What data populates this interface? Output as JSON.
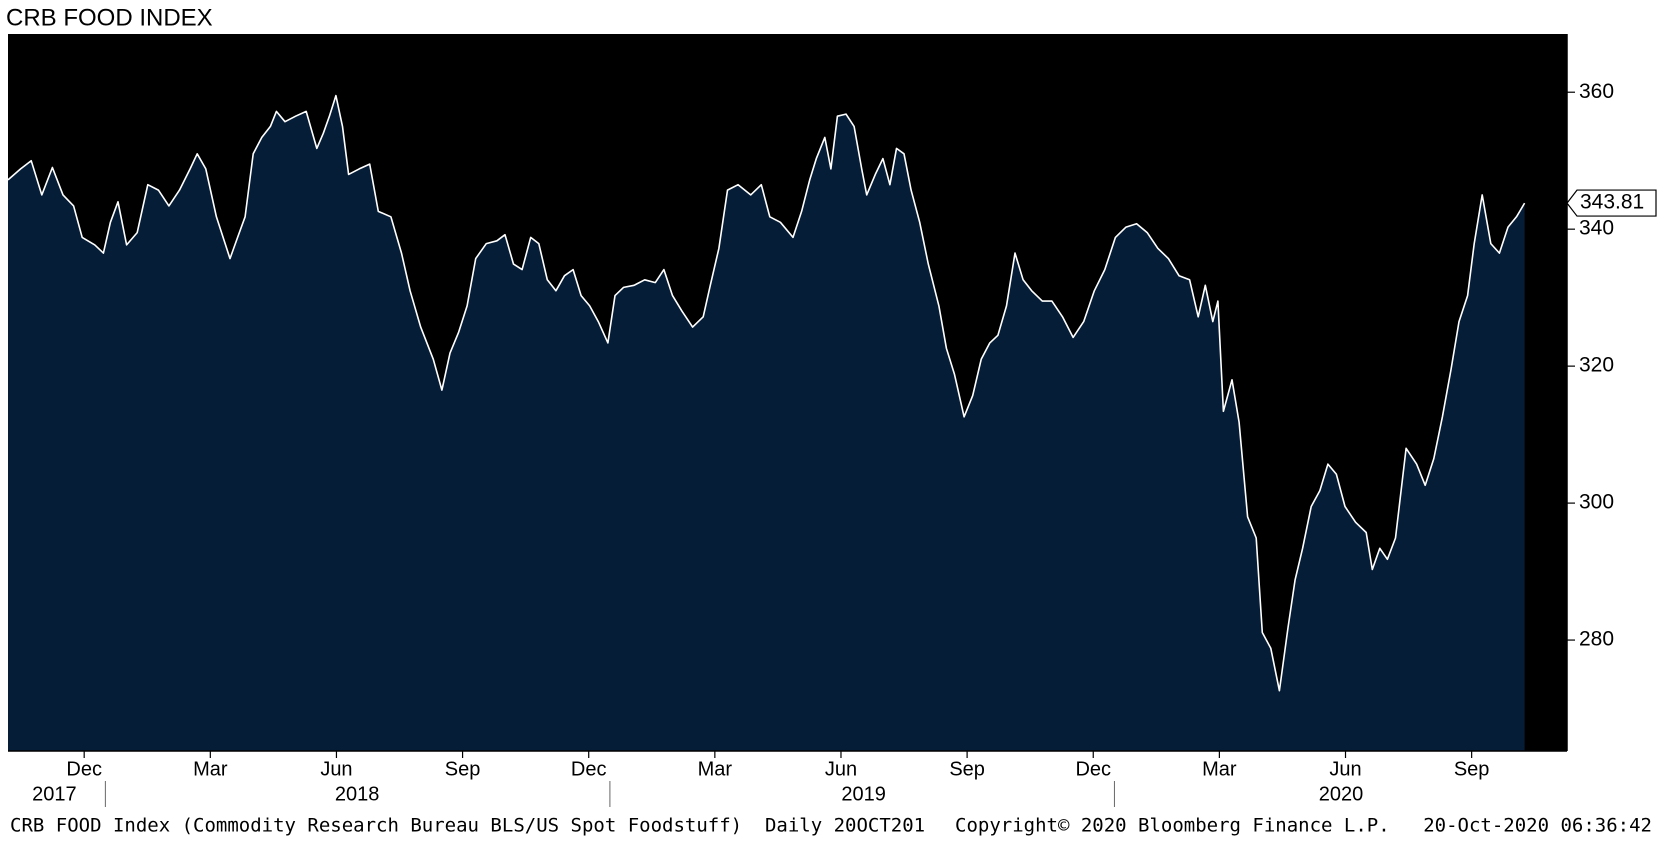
{
  "chart_data": {
    "type": "area",
    "title": "CRB FOOD INDEX",
    "x": [
      2017.807,
      2017.832,
      2017.853,
      2017.874,
      2017.895,
      2017.916,
      2017.937,
      2017.954,
      2017.979,
      2017.996,
      2018.01,
      2018.025,
      2018.042,
      2018.063,
      2018.084,
      2018.105,
      2018.126,
      2018.147,
      2018.168,
      2018.182,
      2018.199,
      2018.22,
      2018.247,
      2018.262,
      2018.277,
      2018.293,
      2018.31,
      2018.327,
      2018.339,
      2018.356,
      2018.377,
      2018.398,
      2018.419,
      2018.432,
      2018.444,
      2018.457,
      2018.47,
      2018.482,
      2018.503,
      2018.524,
      2018.541,
      2018.566,
      2018.587,
      2018.604,
      2018.625,
      2018.65,
      2018.667,
      2018.683,
      2018.7,
      2018.717,
      2018.734,
      2018.755,
      2018.776,
      2018.792,
      2018.809,
      2018.826,
      2018.843,
      2018.859,
      2018.876,
      2018.893,
      2018.91,
      2018.927,
      2018.943,
      2018.96,
      2018.977,
      2018.996,
      2019.01,
      2019.027,
      2019.048,
      2019.069,
      2019.09,
      2019.107,
      2019.124,
      2019.143,
      2019.164,
      2019.185,
      2019.199,
      2019.216,
      2019.233,
      2019.254,
      2019.279,
      2019.3,
      2019.317,
      2019.338,
      2019.363,
      2019.38,
      2019.396,
      2019.409,
      2019.426,
      2019.438,
      2019.451,
      2019.468,
      2019.484,
      2019.499,
      2019.509,
      2019.526,
      2019.541,
      2019.555,
      2019.568,
      2019.583,
      2019.597,
      2019.614,
      2019.631,
      2019.652,
      2019.667,
      2019.683,
      2019.702,
      2019.719,
      2019.736,
      2019.753,
      2019.769,
      2019.786,
      2019.803,
      2019.819,
      2019.836,
      2019.857,
      2019.876,
      2019.897,
      2019.918,
      2019.939,
      2019.96,
      2019.981,
      2020.002,
      2020.023,
      2020.044,
      2020.065,
      2020.086,
      2020.107,
      2020.128,
      2020.149,
      2020.166,
      2020.18,
      2020.195,
      2020.205,
      2020.216,
      2020.233,
      2020.247,
      2020.264,
      2020.281,
      2020.293,
      2020.31,
      2020.327,
      2020.344,
      2020.358,
      2020.373,
      2020.39,
      2020.407,
      2020.423,
      2020.44,
      2020.457,
      2020.478,
      2020.499,
      2020.511,
      2020.526,
      2020.541,
      2020.557,
      2020.578,
      2020.599,
      2020.616,
      2020.633,
      2020.65,
      2020.667,
      2020.683,
      2020.7,
      2020.713,
      2020.729,
      2020.746,
      2020.763,
      2020.78,
      2020.797,
      2020.813
    ],
    "values": [
      347.2,
      348.8,
      350,
      345,
      349,
      345,
      343.4,
      338.8,
      337.7,
      336.5,
      341,
      344,
      337.7,
      339.5,
      346.5,
      345.7,
      343.4,
      345.7,
      348.8,
      351,
      348.8,
      341.8,
      335.7,
      338.8,
      341.8,
      351,
      353.4,
      355,
      357.2,
      355.7,
      356.5,
      357.2,
      351.8,
      354,
      356.5,
      359.5,
      355,
      348,
      348.8,
      349.5,
      342.6,
      341.8,
      336.5,
      331,
      325.7,
      321,
      316.5,
      321.9,
      324.9,
      328.8,
      335.7,
      337.9,
      338.3,
      339.2,
      334.9,
      334.1,
      338.8,
      337.9,
      332.6,
      331,
      333.2,
      334.1,
      330.3,
      328.8,
      326.5,
      323.4,
      330.3,
      331.5,
      331.8,
      332.6,
      332.2,
      334.1,
      330.3,
      328,
      325.7,
      327.2,
      331.8,
      337.2,
      345.7,
      346.5,
      345,
      346.5,
      341.8,
      341,
      338.8,
      342.6,
      347.2,
      350.3,
      353.4,
      348.8,
      356.5,
      356.8,
      355,
      348.8,
      345,
      348,
      350.3,
      346.5,
      351.8,
      351,
      345.7,
      341,
      334.9,
      328.8,
      322.6,
      318.8,
      312.6,
      315.7,
      321,
      323.4,
      324.5,
      328.8,
      336.5,
      332.6,
      331,
      329.5,
      329.5,
      327.2,
      324.2,
      326.5,
      331,
      334.1,
      338.8,
      340.3,
      340.8,
      339.5,
      337.2,
      335.7,
      333.2,
      332.6,
      327.2,
      331.8,
      326.5,
      329.5,
      313.4,
      318,
      311.8,
      298,
      294.9,
      281.1,
      278.8,
      272.6,
      281.8,
      288.8,
      293.4,
      299.5,
      301.8,
      305.7,
      304.2,
      299.5,
      297.2,
      295.7,
      290.3,
      293.4,
      291.8,
      294.9,
      308,
      305.7,
      302.6,
      306.5,
      312.6,
      319.5,
      326.5,
      330.3,
      337.9,
      345,
      337.9,
      336.5,
      340.3,
      341.8,
      343.81
    ],
    "color": "#ffffff",
    "fill_color": "#061d38",
    "background": "#000000",
    "xlim": [
      2017.807,
      2020.897
    ],
    "ylim": [
      263.8,
      368.5
    ],
    "yticks": [
      280,
      300,
      320,
      340,
      360
    ],
    "xticks": [
      {
        "value": 2017.958,
        "label": "Dec"
      },
      {
        "value": 2018.208,
        "label": "Mar"
      },
      {
        "value": 2018.458,
        "label": "Jun"
      },
      {
        "value": 2018.708,
        "label": "Sep"
      },
      {
        "value": 2018.958,
        "label": "Dec"
      },
      {
        "value": 2019.208,
        "label": "Mar"
      },
      {
        "value": 2019.458,
        "label": "Jun"
      },
      {
        "value": 2019.708,
        "label": "Sep"
      },
      {
        "value": 2019.958,
        "label": "Dec"
      },
      {
        "value": 2020.208,
        "label": "Mar"
      },
      {
        "value": 2020.458,
        "label": "Jun"
      },
      {
        "value": 2020.708,
        "label": "Sep"
      }
    ],
    "year_labels": [
      {
        "value": 2017.899,
        "label": "2017"
      },
      {
        "value": 2018.499,
        "label": "2018"
      },
      {
        "value": 2019.503,
        "label": "2019"
      },
      {
        "value": 2020.449,
        "label": "2020"
      }
    ],
    "footer": {
      "description": "CRB FOOD Index (Commodity Research Bureau BLS/US Spot Foodstuff)  Daily 20OCT201",
      "copyright": "Copyright© 2020 Bloomberg Finance L.P.",
      "timestamp": "20-Oct-2020 06:36:42"
    }
  }
}
